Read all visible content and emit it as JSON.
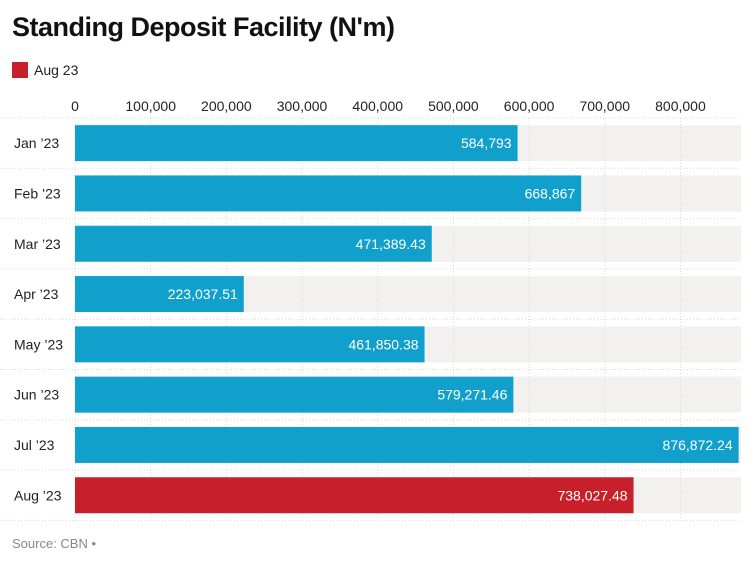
{
  "chart_data": {
    "type": "bar",
    "orientation": "horizontal",
    "title": "Standing Deposit Facility (N'm)",
    "legend": [
      {
        "label": "Aug 23",
        "color": "#c8202a"
      }
    ],
    "categories": [
      "Jan ’23",
      "Feb ’23",
      "Mar ’23",
      "Apr ’23",
      "May ’23",
      "Jun ’23",
      "Jul ’23",
      "Aug ’23"
    ],
    "values": [
      584793,
      668867,
      471389.43,
      223037.51,
      461850.38,
      579271.46,
      876872.24,
      738027.48
    ],
    "value_labels": [
      "584,793",
      "668,867",
      "471,389.43",
      "223,037.51",
      "461,850.38",
      "579,271.46",
      "876,872.24",
      "738,027.48"
    ],
    "bar_colors": [
      "#11a0cc",
      "#11a0cc",
      "#11a0cc",
      "#11a0cc",
      "#11a0cc",
      "#11a0cc",
      "#11a0cc",
      "#c8202a"
    ],
    "xlim": [
      0,
      880000
    ],
    "xticks": [
      0,
      100000,
      200000,
      300000,
      400000,
      500000,
      600000,
      700000,
      800000
    ],
    "xtick_labels": [
      "0",
      "100,000",
      "200,000",
      "300,000",
      "400,000",
      "500,000",
      "600,000",
      "700,000",
      "800,000"
    ],
    "axis_position": "top",
    "xlabel": "",
    "ylabel": ""
  },
  "source": "Source: CBN •",
  "colors": {
    "background_band": "#f2f1f0",
    "grid": "#d9d9d9"
  }
}
